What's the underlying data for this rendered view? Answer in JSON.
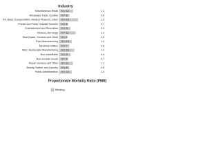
{
  "chart_data": {
    "type": "bar",
    "orientation": "horizontal",
    "title": "Industry",
    "xlabel": "Proportionate Mortality Ratio (PMR)",
    "categories": [
      "Miscellaneous Retail",
      "Wholesale Trade, Durable",
      "Fin. Basic Transportation; Medical Products, Other",
      "Private and Public Hospital Services",
      "Entertainment and Recreation",
      "Tobacco, Beverage",
      "Real Estate, Services and Other",
      "Food Manufacturing",
      "Electrical Utilities",
      "Misc. Nondurable Manufacturing",
      "Non-classifiable",
      "Non-durable Goods",
      "Repair Services and Other",
      "Beauty, Barber, and Laundry",
      "Public Administration"
    ],
    "values": [
      1.1,
      0.8,
      1.5,
      0.7,
      0.9,
      1.3,
      0.6,
      1.0,
      0.8,
      1.2,
      0.9,
      0.7,
      1.1,
      0.8,
      1.0
    ],
    "value_labels": [
      "1.1",
      "0.8",
      "1.5",
      "0.7",
      "0.9",
      "1.3",
      "0.6",
      "1.0",
      "0.8",
      "1.2",
      "0.9",
      "0.7",
      "1.1",
      "0.8",
      "1.0"
    ],
    "n_labels": [
      "N = 12",
      "N = 8",
      "N = 15",
      "N = 6",
      "N = 9",
      "N = 11",
      "N = 5",
      "N = 10",
      "N = 7",
      "N = 13",
      "N = 9",
      "N = 6",
      "N = 11",
      "N = 8",
      "N = 10"
    ],
    "xlim": [
      0,
      3
    ],
    "color": "#c8c8c8",
    "legend": {
      "label": "Missing",
      "color": "#c8c8c8",
      "position": "bottom"
    }
  }
}
